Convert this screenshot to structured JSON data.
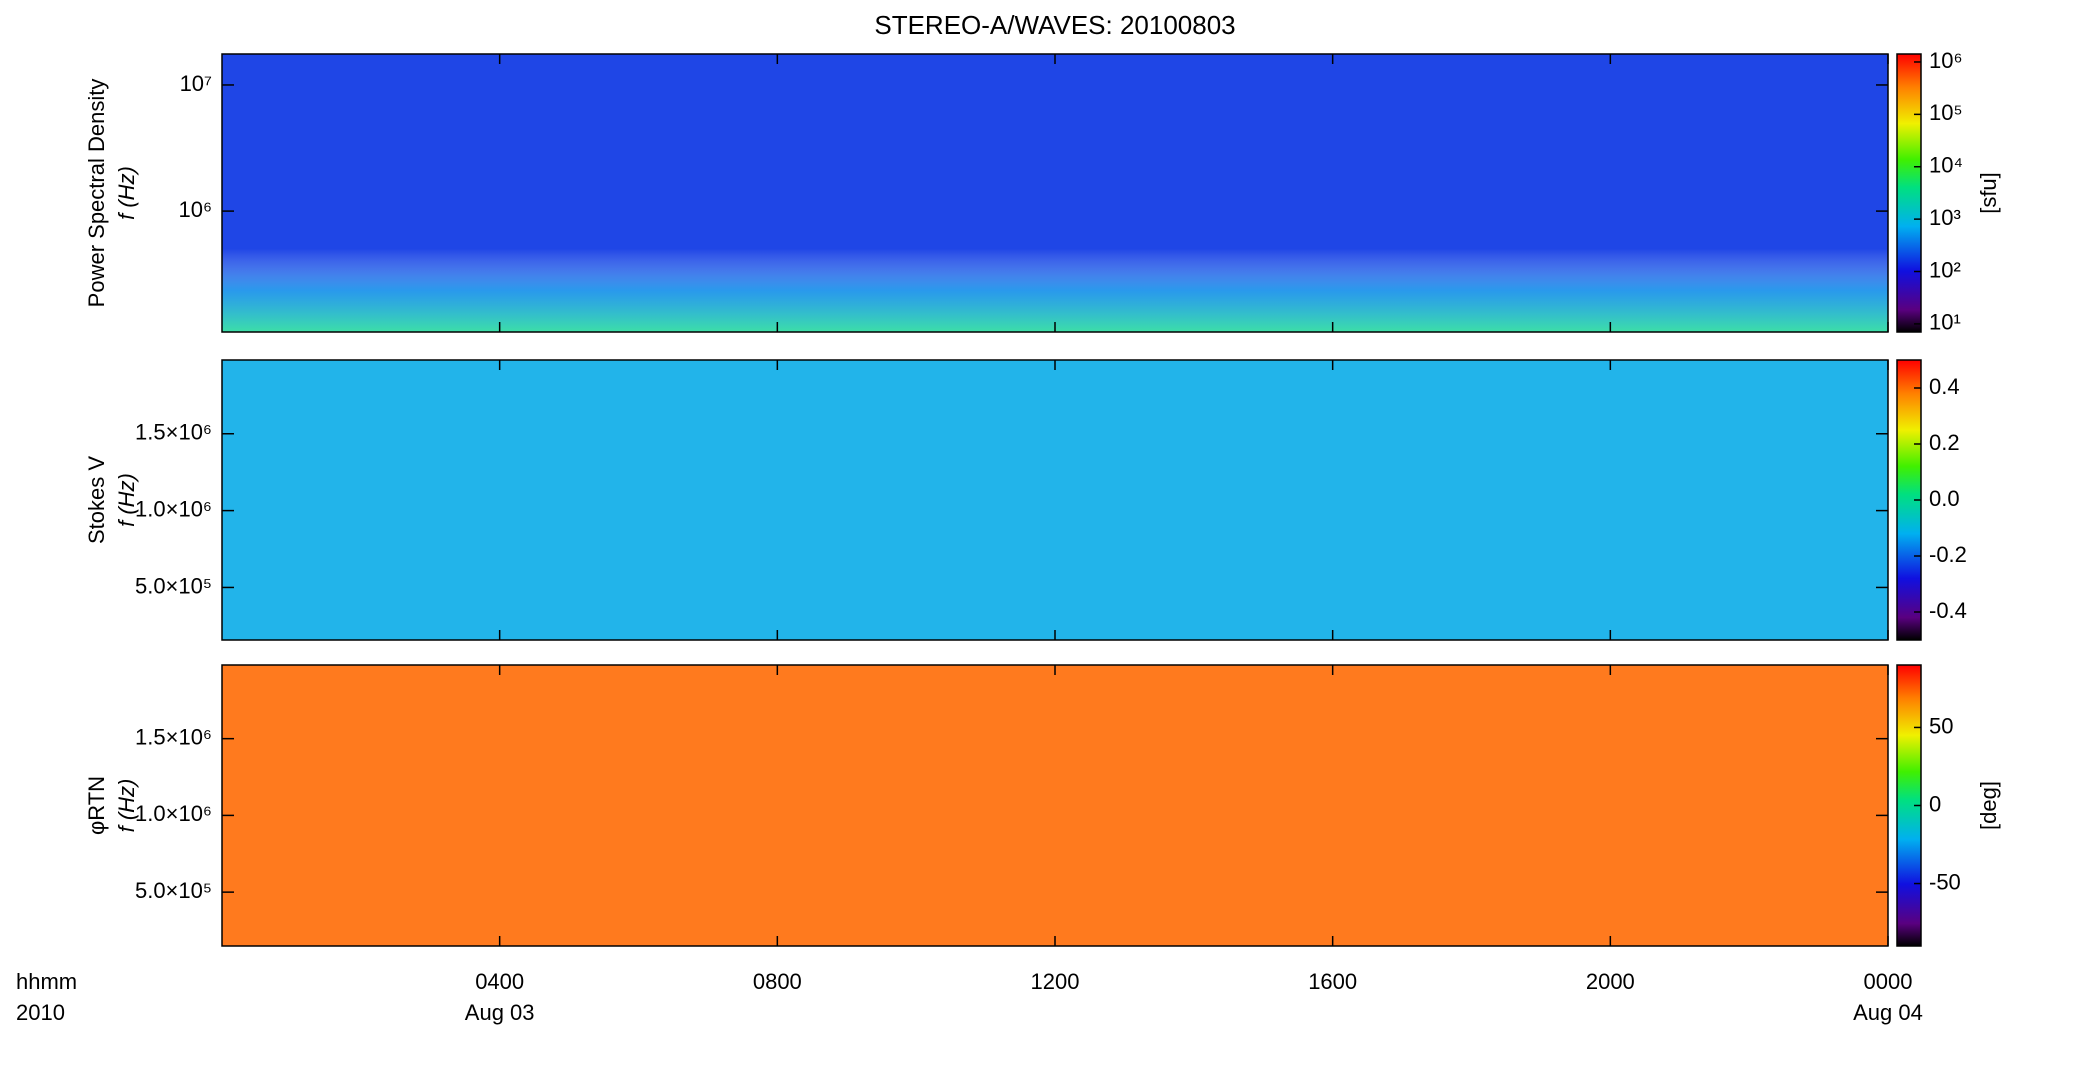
{
  "chart_data": [
    {
      "type": "heatmap",
      "title": "STEREO-A/WAVES: 20100803",
      "ylabel": [
        "Power Spectral Density",
        "f (Hz)"
      ],
      "ylog": true,
      "ylim": [
        110000,
        17600000
      ],
      "yticks": [
        {
          "value": 1000000,
          "label": "10⁶"
        },
        {
          "value": 10000000,
          "label": "10⁷"
        }
      ],
      "clog": true,
      "clim": [
        7,
        1420000
      ],
      "cticks": [
        {
          "value": 10,
          "label": "10¹"
        },
        {
          "value": 100,
          "label": "10²"
        },
        {
          "value": 1000,
          "label": "10³"
        },
        {
          "value": 10000,
          "label": "10⁴"
        },
        {
          "value": 100000,
          "label": "10⁵"
        },
        {
          "value": 1000000,
          "label": "10⁶"
        }
      ],
      "clabel": "[sfu]",
      "color": "#1f46e6"
    },
    {
      "type": "heatmap",
      "ylabel": [
        "Stokes V",
        "f (Hz)"
      ],
      "ylog": false,
      "ylim": [
        158000,
        1980000
      ],
      "yticks": [
        {
          "value": 500000,
          "label": "5.0×10⁵"
        },
        {
          "value": 1000000,
          "label": "1.0×10⁶"
        },
        {
          "value": 1500000,
          "label": "1.5×10⁶"
        }
      ],
      "clog": false,
      "clim": [
        -0.5,
        0.5
      ],
      "cticks": [
        -0.4,
        -0.2,
        {
          "value": 0,
          "label": "0.0"
        },
        0.2,
        0.4
      ],
      "color": "#22b4ea"
    },
    {
      "type": "heatmap",
      "ylabel": [
        "φRTN",
        "f (Hz)"
      ],
      "ylog": false,
      "ylim": [
        149000,
        1980000
      ],
      "yticks": [
        {
          "value": 500000,
          "label": "5.0×10⁵"
        },
        {
          "value": 1000000,
          "label": "1.0×10⁶"
        },
        {
          "value": 1500000,
          "label": "1.5×10⁶"
        }
      ],
      "clog": false,
      "clim": [
        -90,
        90
      ],
      "cticks": [
        -50,
        0,
        50
      ],
      "clabel": "[deg]",
      "color": "#ff7a1e",
      "xlim": [
        0,
        24
      ],
      "xticks": [
        {
          "value": 4,
          "label": "0400"
        },
        {
          "value": 8,
          "label": "0800"
        },
        {
          "value": 12,
          "label": "1200"
        },
        {
          "value": 16,
          "label": "1600"
        },
        {
          "value": 20,
          "label": "2000"
        },
        {
          "value": 24,
          "label": "0000"
        }
      ],
      "xtick_dates": [
        {
          "value": 4,
          "label": "Aug 03"
        },
        {
          "value": 24,
          "label": "Aug 04"
        }
      ],
      "xaxis_labels": [
        "hhmm",
        "2010"
      ]
    }
  ]
}
